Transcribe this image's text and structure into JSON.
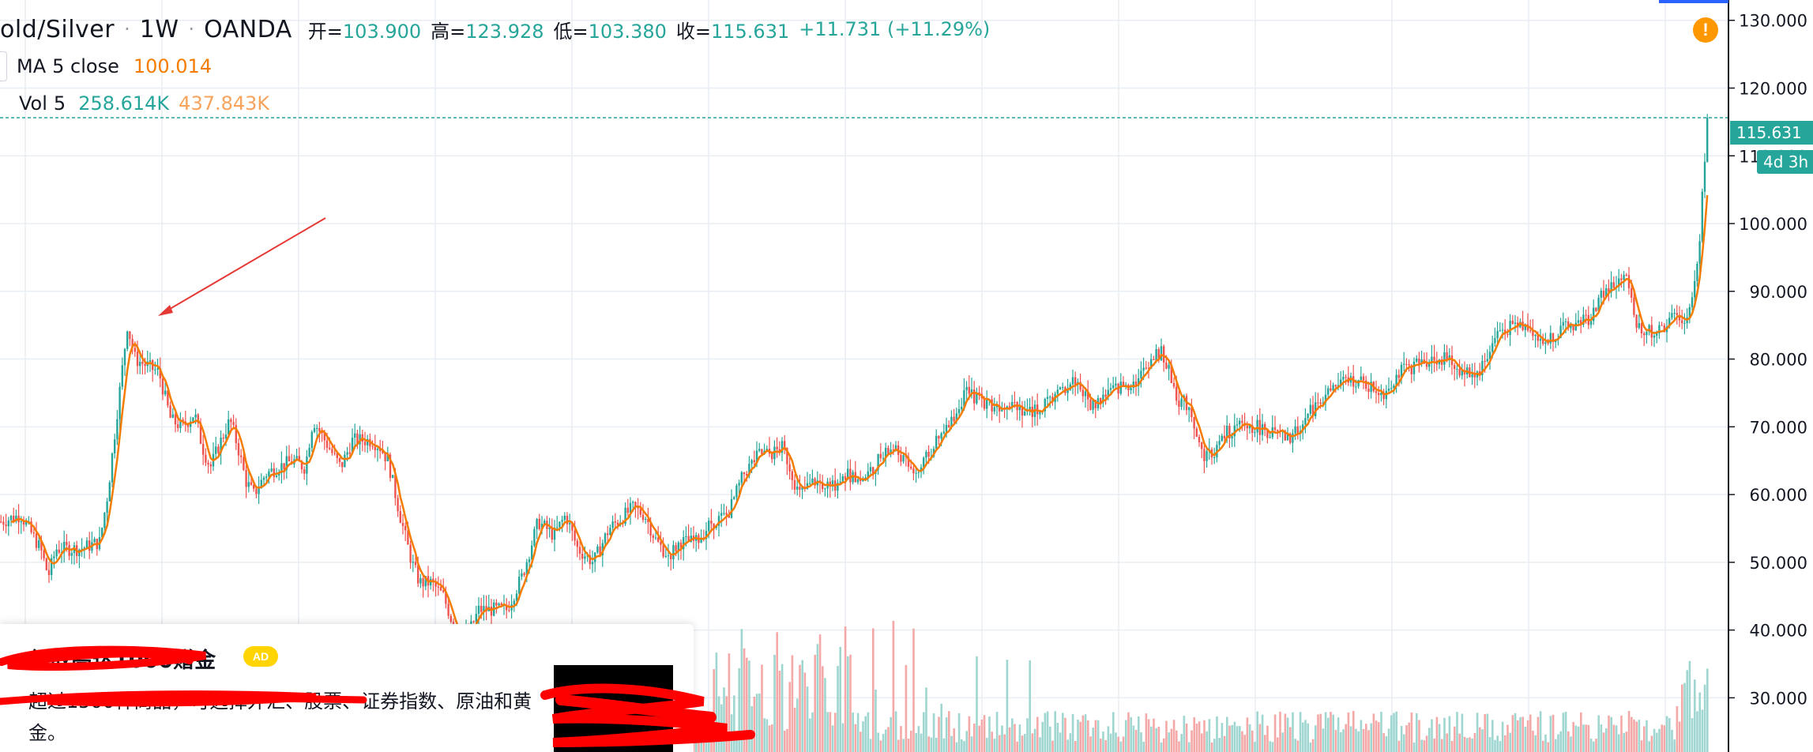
{
  "header": {
    "symbol": "old/Silver",
    "interval": "1W",
    "exchange": "OANDA",
    "ohlc": [
      {
        "label": "开=",
        "value": "103.900"
      },
      {
        "label": "高=",
        "value": "123.928"
      },
      {
        "label": "低=",
        "value": "103.380"
      },
      {
        "label": "收=",
        "value": "115.631"
      }
    ],
    "change": "+11.731 (+11.29%)"
  },
  "indicators": {
    "ma": {
      "name": "MA",
      "params": "5 close",
      "value": "100.014"
    },
    "vol": {
      "name": "Vol",
      "params": "5",
      "value1": "258.614K",
      "value2": "437.843K"
    }
  },
  "price_axis": {
    "last_price": "115.631",
    "countdown": "4d 3h"
  },
  "alert": {
    "glyph": "!"
  },
  "ad": {
    "title": "领取高达1000赠金",
    "badge": "AD",
    "body": "超过1500种商品，可选择外汇、股票、证券指数、原油和黄金。"
  },
  "colors": {
    "up": "#26a69a",
    "down": "#ef5350",
    "ma_line": "#f57c00",
    "vol_up": "#9fd6d0",
    "vol_down": "#f4a9a8",
    "grid": "#e8eef3",
    "annotation_arrow": "#e53935",
    "scribble": "#ff0000"
  },
  "chart_data": {
    "type": "candlestick",
    "interval": "1W",
    "ylim": [
      22,
      133
    ],
    "ticks": [
      30,
      40,
      50,
      60,
      70,
      80,
      90,
      100,
      110,
      120,
      130
    ],
    "tick_labels": [
      "30.000",
      "40.000",
      "50.000",
      "60.000",
      "70.000",
      "80.000",
      "90.000",
      "100.000",
      "110.000",
      "120.000",
      "130.000"
    ],
    "last_close": 115.631,
    "close_path": [
      [
        0,
        56
      ],
      [
        25,
        57
      ],
      [
        50,
        52
      ],
      [
        60,
        48
      ],
      [
        70,
        52
      ],
      [
        100,
        52
      ],
      [
        125,
        53
      ],
      [
        135,
        60
      ],
      [
        150,
        75
      ],
      [
        160,
        85
      ],
      [
        170,
        80
      ],
      [
        185,
        79
      ],
      [
        200,
        78
      ],
      [
        215,
        71
      ],
      [
        230,
        70
      ],
      [
        245,
        72
      ],
      [
        255,
        67
      ],
      [
        265,
        64
      ],
      [
        275,
        67
      ],
      [
        290,
        71
      ],
      [
        300,
        67
      ],
      [
        310,
        62
      ],
      [
        320,
        60
      ],
      [
        335,
        63
      ],
      [
        350,
        64
      ],
      [
        370,
        65
      ],
      [
        385,
        64
      ],
      [
        395,
        71
      ],
      [
        410,
        68
      ],
      [
        430,
        64
      ],
      [
        445,
        68
      ],
      [
        470,
        68
      ],
      [
        480,
        67
      ],
      [
        490,
        65
      ],
      [
        505,
        57
      ],
      [
        520,
        50
      ],
      [
        530,
        47
      ],
      [
        545,
        47
      ],
      [
        560,
        45
      ],
      [
        575,
        40
      ],
      [
        590,
        39
      ],
      [
        605,
        43
      ],
      [
        625,
        43
      ],
      [
        640,
        43
      ],
      [
        660,
        48
      ],
      [
        680,
        56
      ],
      [
        700,
        54
      ],
      [
        715,
        57
      ],
      [
        730,
        52
      ],
      [
        750,
        50
      ],
      [
        770,
        55
      ],
      [
        800,
        58
      ],
      [
        815,
        57
      ],
      [
        830,
        53
      ],
      [
        845,
        51
      ],
      [
        860,
        53
      ],
      [
        880,
        53
      ],
      [
        900,
        56
      ],
      [
        920,
        57
      ],
      [
        940,
        63
      ],
      [
        960,
        66
      ],
      [
        975,
        66
      ],
      [
        990,
        67
      ],
      [
        1010,
        60
      ],
      [
        1030,
        62
      ],
      [
        1050,
        61
      ],
      [
        1070,
        63
      ],
      [
        1090,
        62
      ],
      [
        1110,
        65
      ],
      [
        1130,
        67
      ],
      [
        1150,
        64
      ],
      [
        1160,
        63
      ],
      [
        1180,
        67
      ],
      [
        1200,
        70
      ],
      [
        1220,
        75
      ],
      [
        1240,
        74
      ],
      [
        1260,
        73
      ],
      [
        1280,
        74
      ],
      [
        1300,
        72
      ],
      [
        1320,
        73
      ],
      [
        1340,
        75
      ],
      [
        1360,
        77
      ],
      [
        1380,
        73
      ],
      [
        1400,
        75
      ],
      [
        1420,
        76
      ],
      [
        1440,
        77
      ],
      [
        1455,
        80
      ],
      [
        1470,
        81
      ],
      [
        1490,
        74
      ],
      [
        1505,
        73
      ],
      [
        1520,
        66
      ],
      [
        1535,
        66
      ],
      [
        1550,
        69
      ],
      [
        1570,
        70
      ],
      [
        1590,
        70
      ],
      [
        1610,
        69
      ],
      [
        1630,
        68
      ],
      [
        1650,
        71
      ],
      [
        1670,
        74
      ],
      [
        1690,
        76
      ],
      [
        1710,
        77
      ],
      [
        1730,
        76
      ],
      [
        1750,
        75
      ],
      [
        1770,
        78
      ],
      [
        1790,
        79
      ],
      [
        1810,
        80
      ],
      [
        1830,
        80
      ],
      [
        1850,
        78
      ],
      [
        1870,
        78
      ],
      [
        1880,
        80
      ],
      [
        1895,
        84
      ],
      [
        1915,
        85
      ],
      [
        1935,
        85
      ],
      [
        1950,
        82
      ],
      [
        1970,
        84
      ],
      [
        1990,
        85
      ],
      [
        2010,
        86
      ],
      [
        2030,
        90
      ],
      [
        2045,
        91
      ],
      [
        2060,
        92
      ],
      [
        2070,
        85
      ],
      [
        2085,
        84
      ],
      [
        2100,
        84
      ],
      [
        2115,
        86
      ],
      [
        2130,
        86
      ],
      [
        2140,
        88
      ],
      [
        2150,
        96
      ],
      [
        2155,
        107
      ],
      [
        2160,
        113
      ],
      [
        2163,
        115.631
      ]
    ]
  }
}
